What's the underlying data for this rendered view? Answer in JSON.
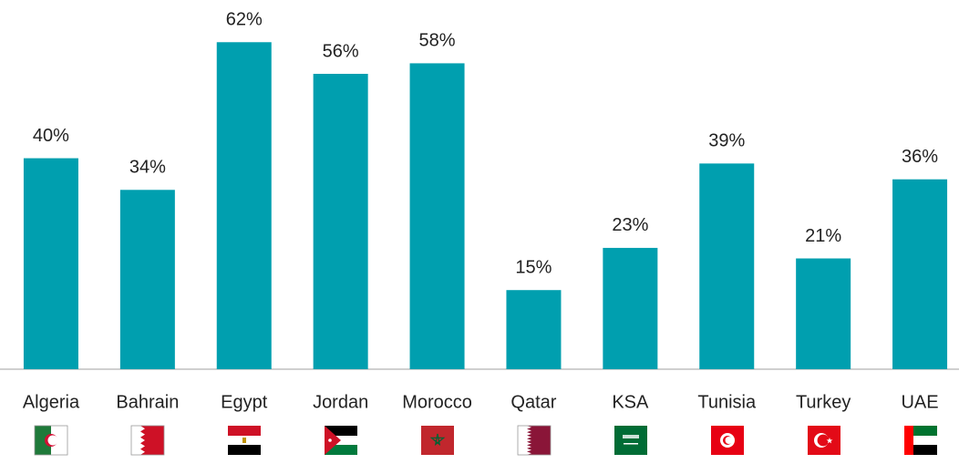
{
  "chart_data": {
    "type": "bar",
    "categories": [
      "Algeria",
      "Bahrain",
      "Egypt",
      "Jordan",
      "Morocco",
      "Qatar",
      "KSA",
      "Tunisia",
      "Turkey",
      "UAE"
    ],
    "values": [
      40,
      34,
      62,
      56,
      58,
      15,
      23,
      39,
      21,
      36
    ],
    "value_labels": [
      "40%",
      "34%",
      "62%",
      "56%",
      "58%",
      "15%",
      "23%",
      "39%",
      "21%",
      "36%"
    ],
    "color": "#009faf",
    "ylim": [
      0,
      70
    ]
  }
}
